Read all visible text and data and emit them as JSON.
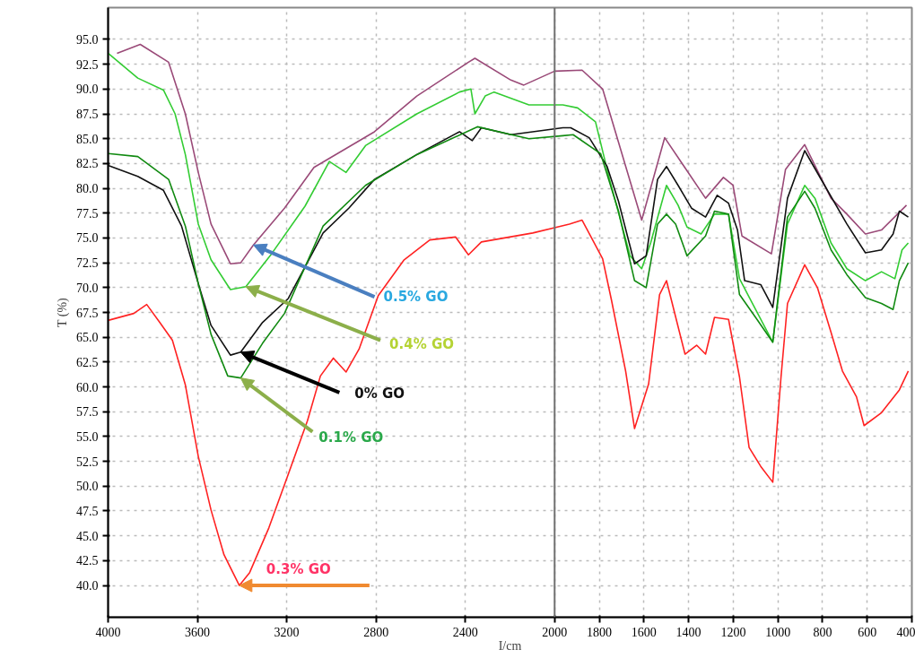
{
  "chart_data": {
    "type": "line",
    "xlabel": "I/cm",
    "ylabel": "T (%)",
    "xlim": [
      4000,
      400
    ],
    "xticks": [
      4000,
      3600,
      3200,
      2800,
      2400,
      2000,
      1800,
      1600,
      1400,
      1200,
      1000,
      800,
      600,
      400
    ],
    "ylim": [
      36.8,
      98.2
    ],
    "yticks": [
      {
        "value": 40,
        "label": "40.0"
      },
      {
        "value": 42.5,
        "label": "42.5"
      },
      {
        "value": 45,
        "label": "45.0"
      },
      {
        "value": 47.5,
        "label": "47.5"
      },
      {
        "value": 50,
        "label": "50.0"
      },
      {
        "value": 52.5,
        "label": "52.5"
      },
      {
        "value": 55,
        "label": "55.0"
      },
      {
        "value": 57.5,
        "label": "57.5"
      },
      {
        "value": 60,
        "label": "60.0"
      },
      {
        "value": 62.5,
        "label": "62.5"
      },
      {
        "value": 65,
        "label": "65.0"
      },
      {
        "value": 67.5,
        "label": "67.5"
      },
      {
        "value": 70,
        "label": "70.0"
      },
      {
        "value": 72.5,
        "label": "72.5"
      },
      {
        "value": 75,
        "label": "75.0"
      },
      {
        "value": 77.5,
        "label": "77.5"
      },
      {
        "value": 80,
        "label": "80.0"
      },
      {
        "value": 82.5,
        "label": "82.5"
      },
      {
        "value": 85,
        "label": "85.0"
      },
      {
        "value": 87.5,
        "label": "87.5"
      },
      {
        "value": 90,
        "label": "90.0"
      },
      {
        "value": 92.5,
        "label": "92.5"
      },
      {
        "value": 95,
        "label": "95.0"
      }
    ],
    "grid": true,
    "marker": "none",
    "line_style": "solid",
    "ref_lines": [
      {
        "axis": "x",
        "value": 2000,
        "color": "#707070"
      }
    ],
    "annotations": [
      {
        "text": "0.5% GO",
        "x": 3349,
        "y": 74.3
      },
      {
        "text": "0.4% GO",
        "x": 3383,
        "y": 70.1
      },
      {
        "text": "0% GO",
        "x": 3406,
        "y": 63.5
      },
      {
        "text": "0.1% GO",
        "x": 3406,
        "y": 60.9
      },
      {
        "text": "0.3% GO",
        "x": 3412,
        "y": 40.0
      }
    ],
    "series": [
      {
        "color": "#9a4a78",
        "x": [
          3960,
          3856,
          3729,
          3654,
          3596,
          3539,
          3452,
          3406,
          3349,
          3210,
          3078,
          2807,
          2617,
          2386,
          2357,
          2196,
          2138,
          2000,
          1877,
          1785,
          1610,
          1507,
          1324,
          1244,
          1201,
          1161,
          1029,
          966,
          880,
          762,
          691,
          608,
          536,
          424
        ],
        "values": [
          93.6,
          94.5,
          92.7,
          87.5,
          81.6,
          76.4,
          72.4,
          72.5,
          74.3,
          78.0,
          82.1,
          85.7,
          89.3,
          92.7,
          93.1,
          90.9,
          90.4,
          91.8,
          91.9,
          90.0,
          76.8,
          85.1,
          79.0,
          81.1,
          80.3,
          75.2,
          73.4,
          81.9,
          84.4,
          79.0,
          77.4,
          75.4,
          75.8,
          78.3
        ]
      },
      {
        "color": "#33cc33",
        "x": [
          4000,
          3867,
          3752,
          3700,
          3654,
          3596,
          3539,
          3452,
          3383,
          3268,
          3118,
          3009,
          2934,
          2847,
          2617,
          2426,
          2375,
          2357,
          2311,
          2271,
          2115,
          1963,
          1897,
          1817,
          1754,
          1662,
          1610,
          1570,
          1499,
          1447,
          1407,
          1344,
          1284,
          1221,
          1172,
          1100,
          1023,
          957,
          880,
          834,
          762,
          691,
          608,
          536,
          476,
          444,
          416
        ],
        "values": [
          93.6,
          91.1,
          89.9,
          87.5,
          83.4,
          76.4,
          72.8,
          69.8,
          70.1,
          73.4,
          78.2,
          82.7,
          81.6,
          84.3,
          87.5,
          89.7,
          90.0,
          87.5,
          89.3,
          89.7,
          88.4,
          88.4,
          88.1,
          86.7,
          80.9,
          73.2,
          71.9,
          74.5,
          80.3,
          78.3,
          76.1,
          75.4,
          77.4,
          77.4,
          70.9,
          67.8,
          64.5,
          76.4,
          80.3,
          79.0,
          74.5,
          71.9,
          70.7,
          71.6,
          70.9,
          73.8,
          74.5
        ]
      },
      {
        "color": "#111111",
        "x": [
          4000,
          3867,
          3752,
          3671,
          3596,
          3539,
          3452,
          3406,
          3308,
          3193,
          3037,
          2922,
          2807,
          2617,
          2426,
          2369,
          2328,
          2196,
          1963,
          1928,
          1845,
          1765,
          1714,
          1642,
          1590,
          1539,
          1499,
          1447,
          1387,
          1324,
          1272,
          1221,
          1181,
          1149,
          1077,
          1023,
          957,
          880,
          791,
          691,
          608,
          536,
          484,
          456,
          416
        ],
        "values": [
          82.3,
          81.2,
          79.8,
          76.2,
          70.4,
          66.2,
          63.2,
          63.5,
          66.5,
          68.9,
          75.5,
          78.0,
          80.9,
          83.4,
          85.7,
          84.8,
          86.1,
          85.4,
          86.1,
          86.1,
          85.1,
          82.2,
          78.7,
          72.4,
          73.2,
          80.9,
          82.2,
          80.3,
          78.0,
          77.1,
          79.3,
          78.5,
          75.8,
          70.7,
          70.3,
          68.0,
          79.0,
          83.8,
          80.3,
          76.4,
          73.5,
          73.8,
          75.4,
          77.7,
          77.1
        ]
      },
      {
        "color": "#118a11",
        "x": [
          4000,
          3867,
          3729,
          3654,
          3596,
          3539,
          3464,
          3406,
          3308,
          3210,
          3037,
          2847,
          2617,
          2346,
          2115,
          1963,
          1917,
          1794,
          1714,
          1642,
          1590,
          1539,
          1499,
          1458,
          1407,
          1324,
          1284,
          1221,
          1172,
          1100,
          1023,
          957,
          880,
          834,
          762,
          691,
          608,
          536,
          484,
          456,
          416
        ],
        "values": [
          83.5,
          83.2,
          80.9,
          76.2,
          70.4,
          65.3,
          61.1,
          60.9,
          64.4,
          67.4,
          76.2,
          80.3,
          83.4,
          86.2,
          85.0,
          85.3,
          85.4,
          83.5,
          77.7,
          70.7,
          70.0,
          76.4,
          77.4,
          76.4,
          73.2,
          75.2,
          77.7,
          77.4,
          69.3,
          67.0,
          64.5,
          77.1,
          79.7,
          78.0,
          73.8,
          71.3,
          69.0,
          68.4,
          67.8,
          70.7,
          72.5
        ]
      },
      {
        "color": "#ff2222",
        "x": [
          4000,
          3885,
          3827,
          3769,
          3712,
          3654,
          3596,
          3539,
          3481,
          3412,
          3366,
          3280,
          3193,
          3107,
          3049,
          2991,
          2934,
          2876,
          2790,
          2674,
          2559,
          2444,
          2386,
          2328,
          2098,
          1934,
          1877,
          1785,
          1745,
          1682,
          1642,
          1579,
          1530,
          1499,
          1416,
          1364,
          1324,
          1284,
          1221,
          1172,
          1129,
          1077,
          1023,
          986,
          957,
          880,
          823,
          762,
          711,
          648,
          614,
          536,
          456,
          416
        ],
        "values": [
          66.7,
          67.4,
          68.3,
          66.5,
          64.7,
          60.2,
          53.0,
          47.6,
          43.1,
          40.0,
          41.3,
          45.8,
          51.2,
          56.6,
          61.1,
          62.9,
          61.5,
          63.8,
          69.2,
          72.8,
          74.8,
          75.1,
          73.3,
          74.6,
          75.5,
          76.4,
          76.8,
          72.9,
          68.7,
          61.6,
          55.8,
          60.3,
          69.3,
          70.7,
          63.3,
          64.2,
          63.3,
          67.0,
          66.8,
          61.0,
          53.9,
          52.0,
          50.4,
          61.0,
          68.4,
          72.3,
          70.0,
          65.5,
          61.6,
          59.0,
          56.1,
          57.4,
          59.7,
          61.6
        ]
      }
    ]
  }
}
